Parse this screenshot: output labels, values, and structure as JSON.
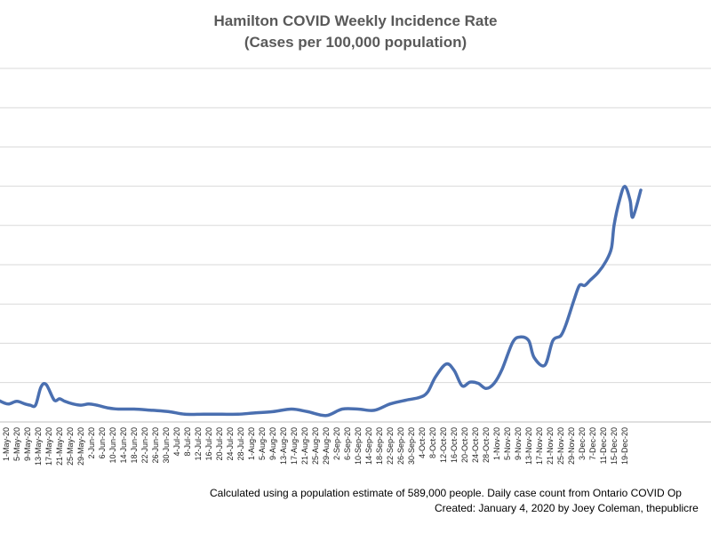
{
  "colors": {
    "line": "#4a6fb0",
    "grid": "#d9d9d9",
    "title": "#595959",
    "text": "#000000"
  },
  "chart_data": {
    "type": "line",
    "title": "Hamilton COVID Weekly Incidence Rate",
    "subtitle": "(Cases per 100,000 population)",
    "xlabel": "",
    "ylabel": "",
    "grid": true,
    "legend": "none",
    "x_tick_labels": [
      "1-May-20",
      "5-May-20",
      "9-May-20",
      "13-May-20",
      "17-May-20",
      "21-May-20",
      "25-May-20",
      "29-May-20",
      "2-Jun-20",
      "6-Jun-20",
      "10-Jun-20",
      "14-Jun-20",
      "18-Jun-20",
      "22-Jun-20",
      "26-Jun-20",
      "30-Jun-20",
      "4-Jul-20",
      "8-Jul-20",
      "12-Jul-20",
      "16-Jul-20",
      "20-Jul-20",
      "24-Jul-20",
      "28-Jul-20",
      "1-Aug-20",
      "5-Aug-20",
      "9-Aug-20",
      "13-Aug-20",
      "17-Aug-20",
      "21-Aug-20",
      "25-Aug-20",
      "29-Aug-20",
      "2-Sep-20",
      "6-Sep-20",
      "10-Sep-20",
      "14-Sep-20",
      "18-Sep-20",
      "22-Sep-20",
      "26-Sep-20",
      "30-Sep-20",
      "4-Oct-20",
      "8-Oct-20",
      "12-Oct-20",
      "16-Oct-20",
      "20-Oct-20",
      "24-Oct-20",
      "28-Oct-20",
      "1-Nov-20",
      "5-Nov-20",
      "9-Nov-20",
      "13-Nov-20",
      "17-Nov-20",
      "21-Nov-20",
      "25-Nov-20",
      "29-Nov-20",
      "3-Dec-20",
      "7-Dec-20",
      "11-Dec-20",
      "15-Dec-20",
      "19-Dec-20"
    ],
    "series": [
      {
        "x": [
          "2020-04-27",
          "2020-04-30",
          "2020-05-02",
          "2020-05-05",
          "2020-05-08",
          "2020-05-10",
          "2020-05-12",
          "2020-05-14",
          "2020-05-16",
          "2020-05-19",
          "2020-05-21",
          "2020-05-23",
          "2020-05-26",
          "2020-05-29",
          "2020-06-01",
          "2020-06-04",
          "2020-06-08",
          "2020-06-12",
          "2020-06-18",
          "2020-06-25",
          "2020-07-01",
          "2020-07-07",
          "2020-07-14",
          "2020-07-21",
          "2020-07-27",
          "2020-08-02",
          "2020-08-09",
          "2020-08-16",
          "2020-08-22",
          "2020-08-29",
          "2020-09-04",
          "2020-09-10",
          "2020-09-16",
          "2020-09-22",
          "2020-09-28",
          "2020-10-03",
          "2020-10-06",
          "2020-10-09",
          "2020-10-13",
          "2020-10-16",
          "2020-10-19",
          "2020-10-22",
          "2020-10-25",
          "2020-10-28",
          "2020-10-31",
          "2020-11-03",
          "2020-11-07",
          "2020-11-10",
          "2020-11-13",
          "2020-11-15",
          "2020-11-19",
          "2020-11-22",
          "2020-11-25",
          "2020-11-27",
          "2020-11-30",
          "2020-12-02",
          "2020-12-04",
          "2020-12-06",
          "2020-12-09",
          "2020-12-12",
          "2020-12-14",
          "2020-12-15",
          "2020-12-17",
          "2020-12-19",
          "2020-12-21",
          "2020-12-22",
          "2020-12-25"
        ],
        "values": [
          18,
          15,
          14,
          16,
          14,
          13,
          13,
          27,
          29,
          17,
          18,
          16,
          14,
          13,
          14,
          13,
          11,
          10,
          10,
          9,
          8,
          6,
          6,
          6,
          6,
          7,
          8,
          10,
          8,
          5,
          10,
          10,
          9,
          14,
          17,
          19,
          23,
          35,
          45,
          40,
          28,
          31,
          30,
          26,
          30,
          41,
          62,
          66,
          63,
          50,
          44,
          63,
          67,
          76,
          95,
          106,
          106,
          110,
          116,
          125,
          135,
          153,
          172,
          183,
          172,
          159,
          180
        ]
      }
    ]
  },
  "footer": {
    "line1": "Calculated using a population estimate of 589,000 people. Daily case count from Ontario COVID Op",
    "line2": "Created: January 4, 2020  by Joey Coleman, thepublicre"
  }
}
